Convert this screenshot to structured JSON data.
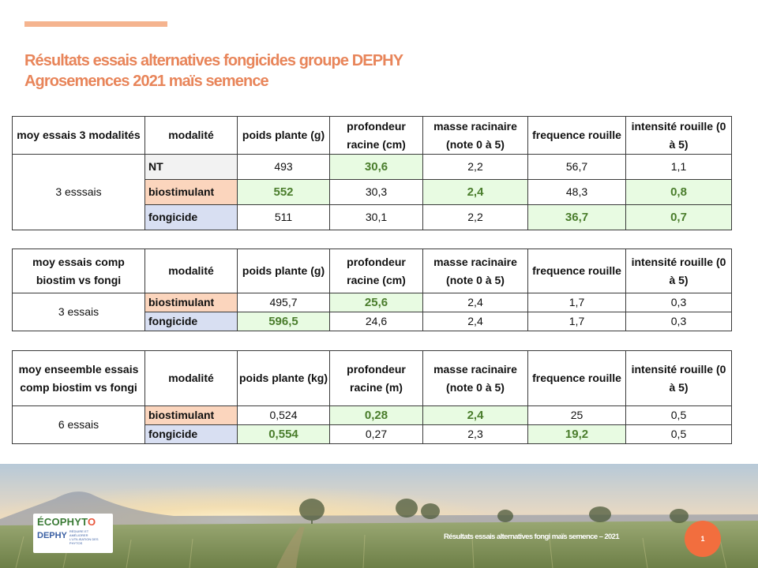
{
  "title": {
    "line1": "Résultats essais alternatives fongicides groupe DEPHY",
    "line2": "Agrosemences 2021 maïs semence"
  },
  "tables": [
    {
      "head": [
        "moy essais 3 modalités",
        "modalité",
        "poids plante (g)",
        "profondeur racine (cm)",
        "masse racinaire (note 0 à 5)",
        "frequence rouille",
        "intensité rouille (0 à 5)"
      ],
      "group": "3 esssais",
      "rows": [
        {
          "mod": "NT",
          "cells": [
            "493",
            "30,6",
            "2,2",
            "56,7",
            "1,1"
          ]
        },
        {
          "mod": "biostimulant",
          "cells": [
            "552",
            "30,3",
            "2,4",
            "48,3",
            "0,8"
          ]
        },
        {
          "mod": "fongicide",
          "cells": [
            "511",
            "30,1",
            "2,2",
            "36,7",
            "0,7"
          ]
        }
      ]
    },
    {
      "head": [
        "moy essais comp biostim vs fongi",
        "modalité",
        "poids plante (g)",
        "profondeur racine (cm)",
        "masse racinaire (note 0 à 5)",
        "frequence rouille",
        "intensité rouille (0 à 5)"
      ],
      "group": "3 essais",
      "rows": [
        {
          "mod": "biostimulant",
          "cells": [
            "495,7",
            "25,6",
            "2,4",
            "1,7",
            "0,3"
          ]
        },
        {
          "mod": "fongicide",
          "cells": [
            "596,5",
            "24,6",
            "2,4",
            "1,7",
            "0,3"
          ]
        }
      ]
    },
    {
      "head": [
        "moy enseemble essais comp biostim vs fongi",
        "modalité",
        "poids plante (kg)",
        "profondeur racine (m)",
        "masse racinaire (note 0 à 5)",
        "frequence rouille",
        "intensité rouille (0 à 5)"
      ],
      "group": "6 essais",
      "rows": [
        {
          "mod": "biostimulant",
          "cells": [
            "0,524",
            "0,28",
            "2,4",
            "25",
            "0,5"
          ]
        },
        {
          "mod": "fongicide",
          "cells": [
            "0,554",
            "0,27",
            "2,3",
            "19,2",
            "0,5"
          ]
        }
      ]
    }
  ],
  "logo": {
    "main_a": "ÉCOPHYT",
    "main_b": "O",
    "dephy": "DEPHY",
    "sub": "RÉDUIRE ET AMÉLIORER L'UTILISATION DES PHYTOS"
  },
  "footer": {
    "text": "Résultats essais alternatives fongi maïs semence  – 2021",
    "page": "1"
  },
  "colors": {
    "title": "#e8855a",
    "highlight_bg": "#e8fbe2",
    "highlight_text": "#4a7d2c",
    "biostimulant_bg": "#fbd5bd",
    "fongicide_bg": "#d8dff2",
    "badge": "#f26e3e"
  }
}
